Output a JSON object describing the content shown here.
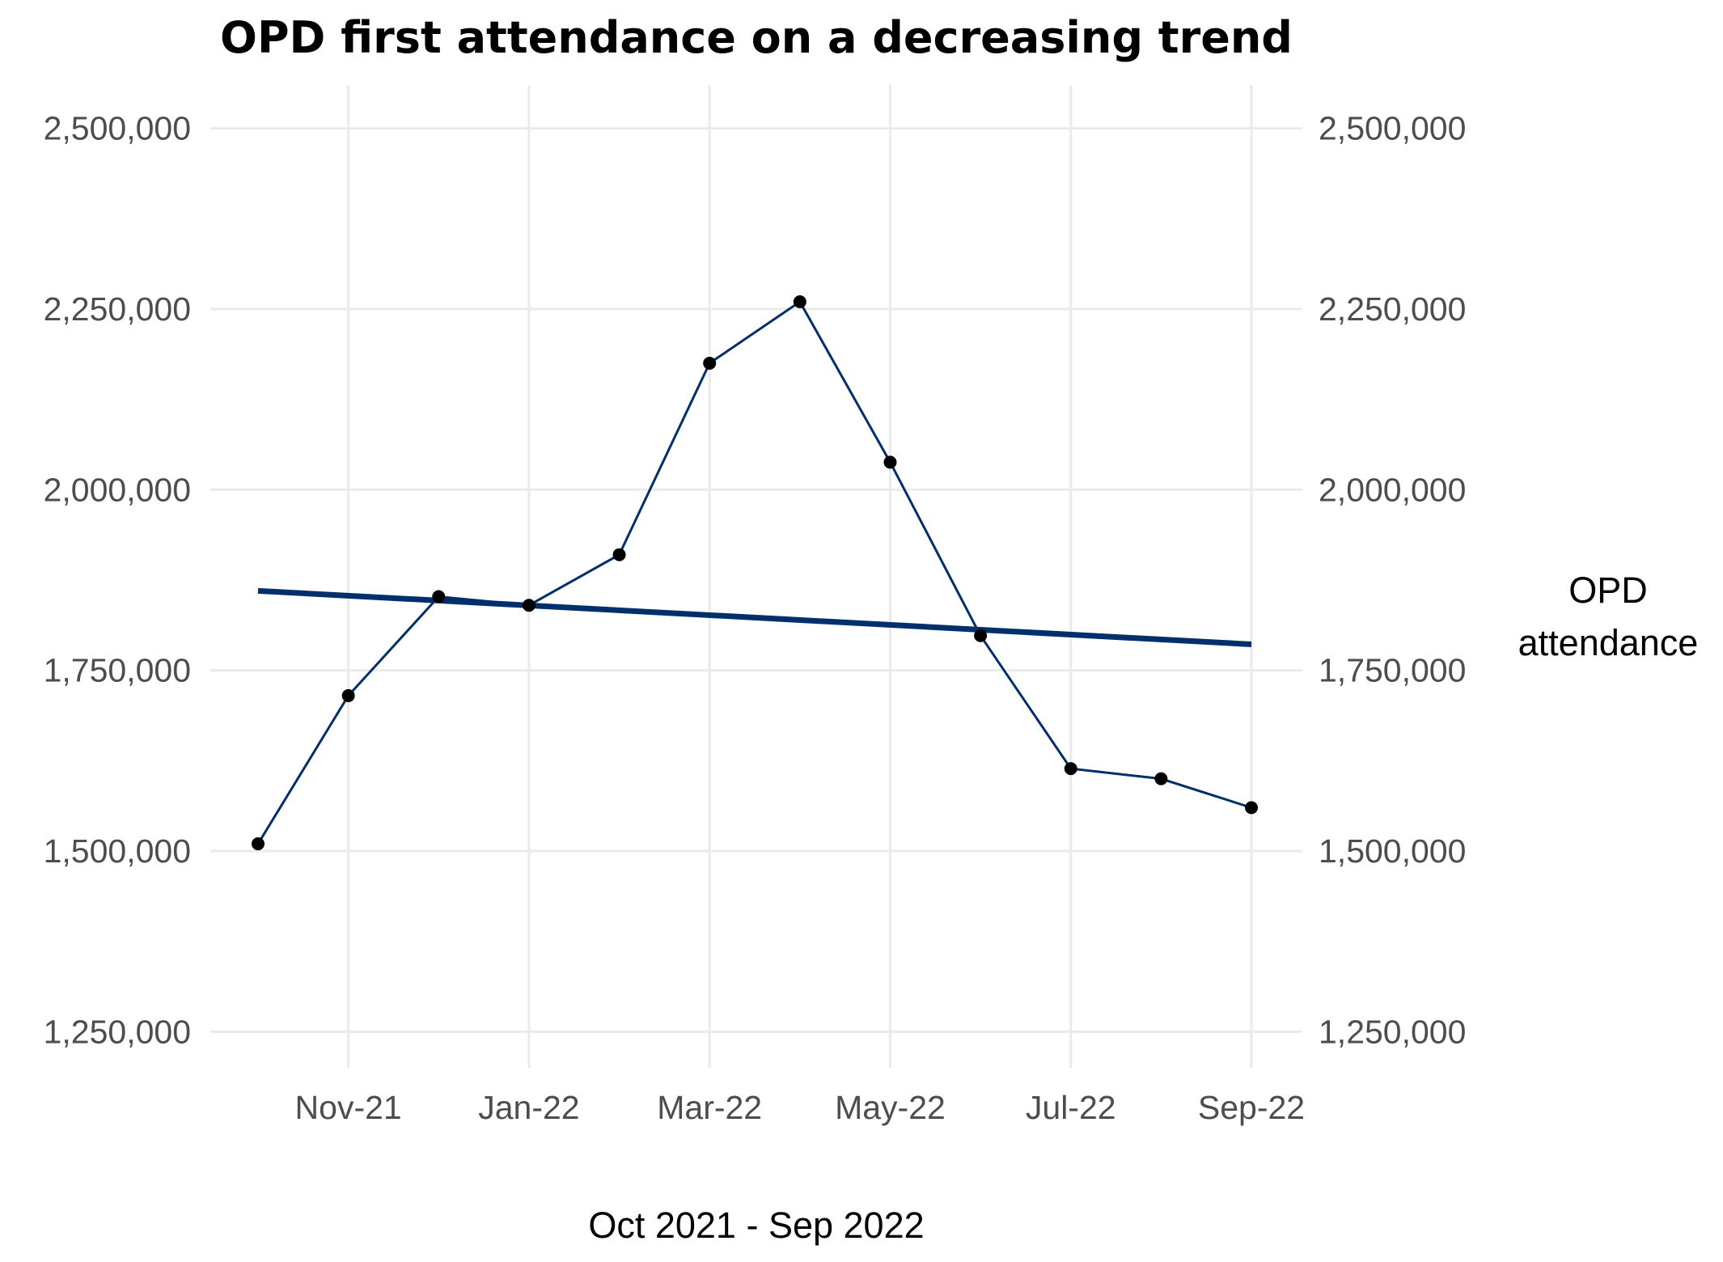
{
  "chart_data": {
    "type": "line",
    "title": "OPD first attendance on a decreasing trend",
    "xlabel": "Oct 2021 - Sep 2022",
    "ylabel_right": [
      "OPD",
      "attendance"
    ],
    "x": [
      "Oct-21",
      "Nov-21",
      "Dec-21",
      "Jan-22",
      "Feb-22",
      "Mar-22",
      "Apr-22",
      "May-22",
      "Jun-22",
      "Jul-22",
      "Aug-22",
      "Sep-22"
    ],
    "x_tick_labels": [
      "Nov-21",
      "Jan-22",
      "Mar-22",
      "May-22",
      "Jul-22",
      "Sep-22"
    ],
    "series": [
      {
        "values": [
          1510000,
          1715000,
          1852000,
          1840000,
          1910000,
          2175000,
          2260000,
          2038000,
          1798000,
          1614000,
          1600000,
          1560000
        ],
        "color": "#002f6c"
      }
    ],
    "trend": {
      "start": 1860000,
      "end": 1786000,
      "color": "#002f6c"
    },
    "y_ticks": [
      1250000,
      1500000,
      1750000,
      2000000,
      2250000,
      2500000
    ],
    "y_tick_labels": [
      "1,250,000",
      "1,500,000",
      "1,750,000",
      "2,000,000",
      "2,250,000",
      "2,500,000"
    ],
    "ylim": [
      1200000,
      2560000
    ],
    "grid": true,
    "point_color": "#000000"
  }
}
